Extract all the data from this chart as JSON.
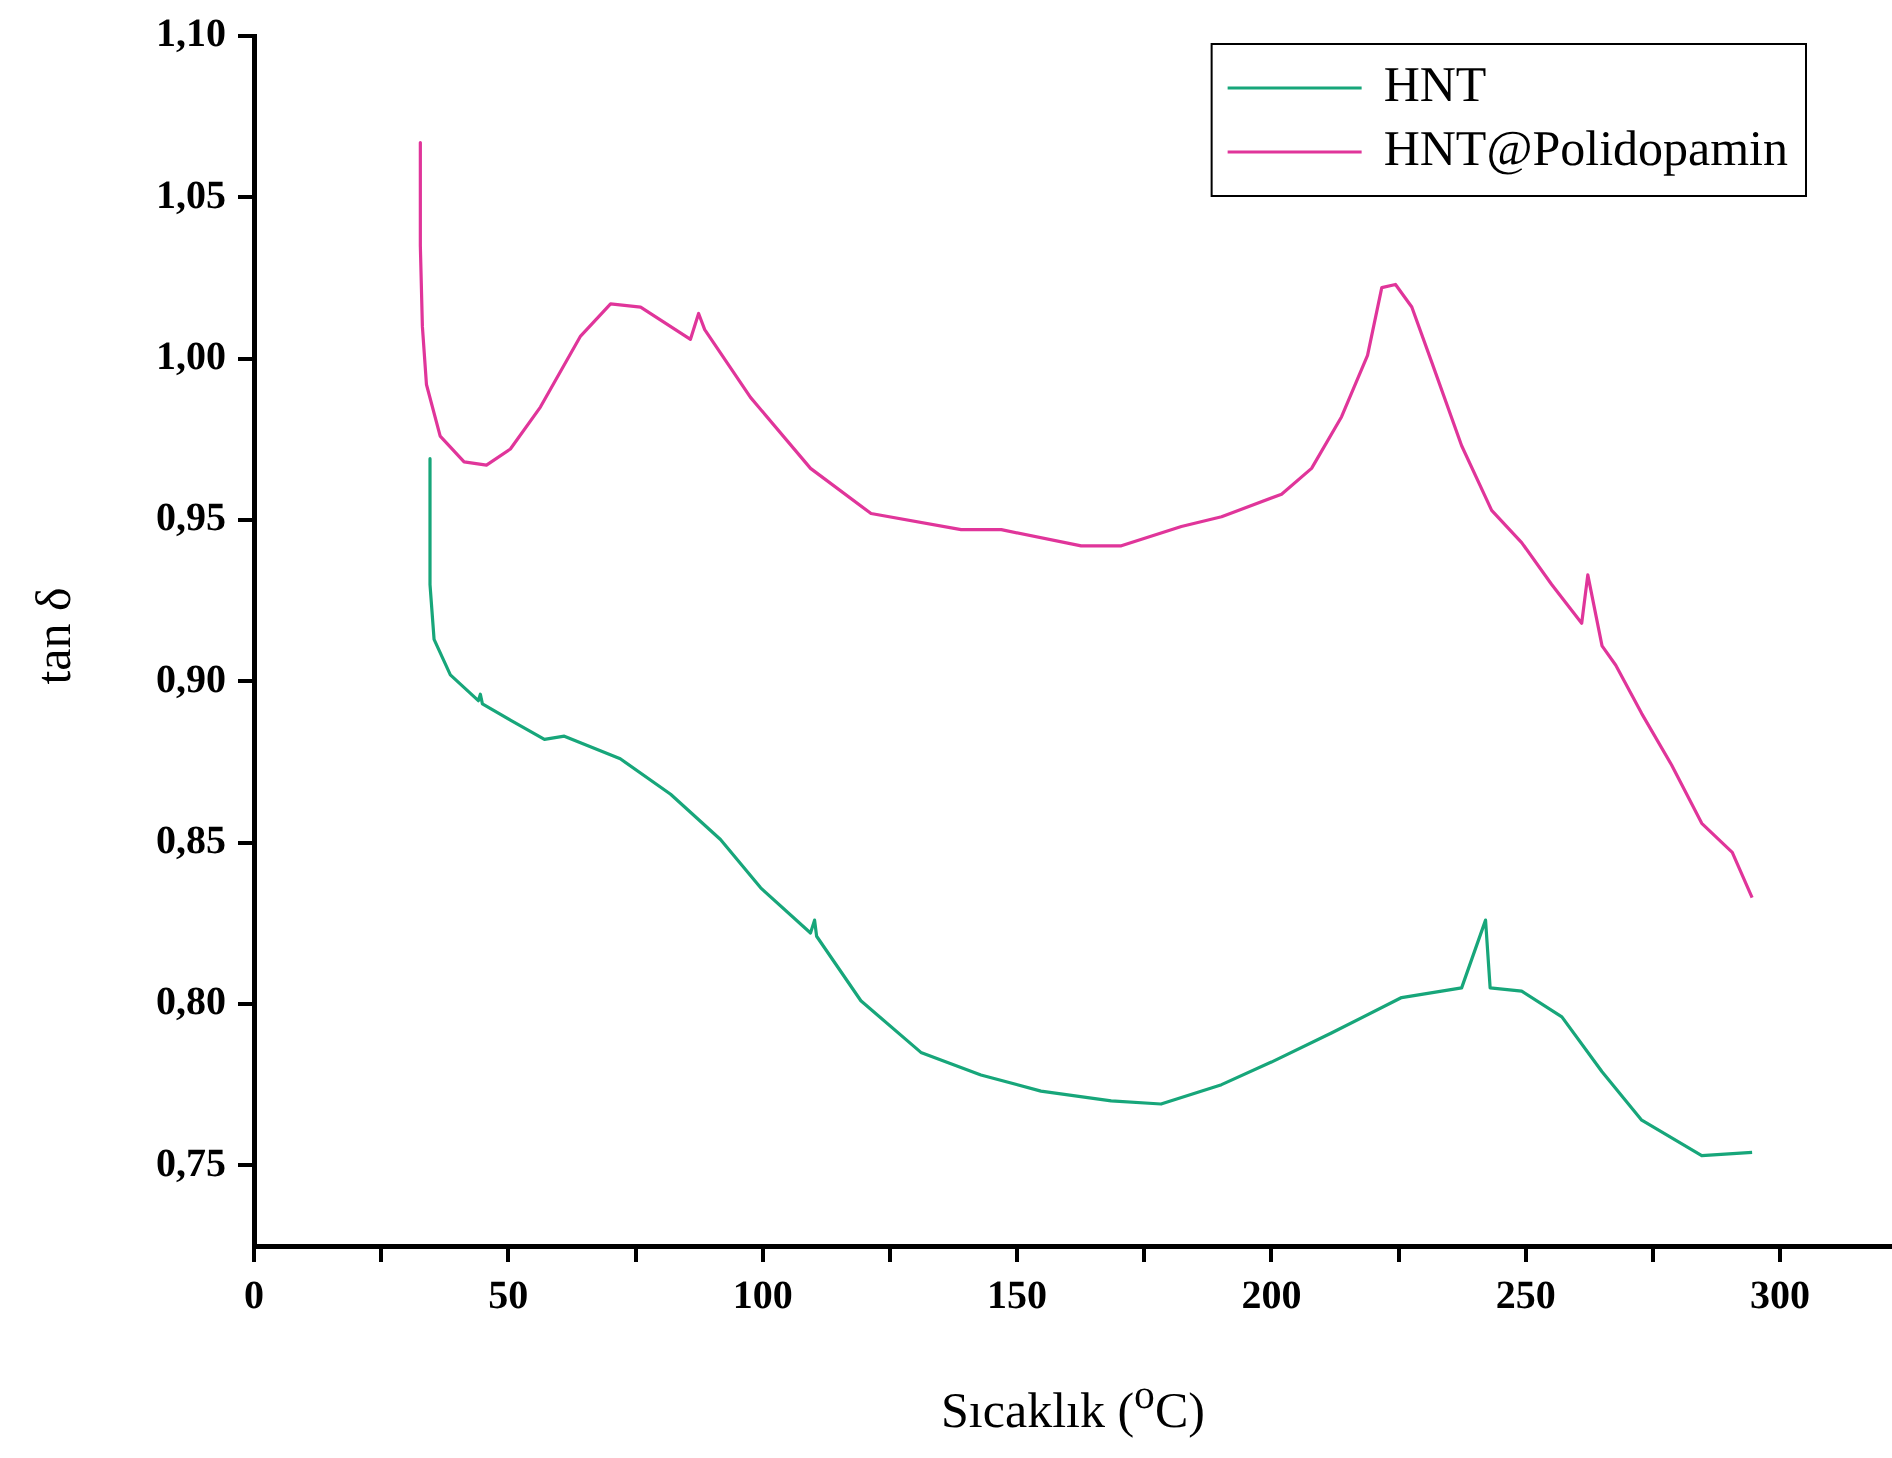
{
  "chart_data": {
    "type": "line",
    "xlabel": "Sıcaklık ($^{o}$C)",
    "ylabel": "tan δ",
    "xlim": [
      0,
      322
    ],
    "ylim": [
      0.725,
      1.1
    ],
    "xticks": [
      0,
      {
        "value": 25,
        "label": null
      },
      50,
      {
        "value": 75,
        "label": null
      },
      100,
      {
        "value": 125,
        "label": null
      },
      150,
      {
        "value": 175,
        "label": null
      },
      200,
      {
        "value": 225,
        "label": null
      },
      250,
      {
        "value": 275,
        "label": null
      },
      300
    ],
    "yticks": [
      {
        "value": 0.75,
        "label": "0,75"
      },
      {
        "value": 0.8,
        "label": "0,80"
      },
      {
        "value": 0.85,
        "label": "0,85"
      },
      {
        "value": 0.9,
        "label": "0,90"
      },
      {
        "value": 0.95,
        "label": "0,95"
      },
      {
        "value": 1.0,
        "label": "1,00"
      },
      {
        "value": 1.05,
        "label": "1,05"
      },
      {
        "value": 1.1,
        "label": "1,10"
      }
    ],
    "grid": false,
    "legend": "top right",
    "marker": "none",
    "line_style": "solid",
    "series": [
      {
        "name": "HNT",
        "color": "#17a67a",
        "x": [
          34.6,
          34.6,
          35.4,
          38.6,
          44.1,
          44.5,
          44.9,
          50.4,
          57.1,
          61,
          72,
          81.9,
          91.7,
          99.6,
          109.4,
          110.2,
          110.6,
          119.3,
          131.1,
          142.9,
          154.7,
          168.5,
          178.3,
          190.2,
          200,
          211.8,
          225.6,
          237.4,
          242.1,
          243,
          249.2,
          257.1,
          265,
          272.8,
          284.6,
          294.5
        ],
        "values": [
          0.969,
          0.93,
          0.913,
          0.902,
          0.894,
          0.896,
          0.893,
          0.888,
          0.882,
          0.883,
          0.876,
          0.865,
          0.851,
          0.836,
          0.822,
          0.826,
          0.821,
          0.801,
          0.785,
          0.778,
          0.773,
          0.77,
          0.769,
          0.775,
          0.782,
          0.791,
          0.802,
          0.805,
          0.826,
          0.805,
          0.804,
          0.796,
          0.779,
          0.764,
          0.753,
          0.754
        ]
      },
      {
        "name": "HNT@Polidopamin",
        "color": "#e0359a",
        "x": [
          32.7,
          32.7,
          33.1,
          33.9,
          36.6,
          41.3,
          45.7,
          50.4,
          56.3,
          64.2,
          70.1,
          76,
          85.8,
          87.4,
          88.6,
          97.6,
          109.4,
          121.3,
          139,
          146.9,
          162.6,
          170.5,
          182.3,
          190.2,
          202,
          207.9,
          213.8,
          218.9,
          221.7,
          224.4,
          227.6,
          231.5,
          237.4,
          243.3,
          249.2,
          255.1,
          261,
          262.2,
          265,
          267.7,
          272.8,
          278.7,
          284.6,
          290.6,
          294.5
        ],
        "values": [
          1.067,
          1.035,
          1.01,
          0.992,
          0.976,
          0.968,
          0.967,
          0.972,
          0.985,
          1.007,
          1.017,
          1.016,
          1.006,
          1.014,
          1.009,
          0.988,
          0.966,
          0.952,
          0.947,
          0.947,
          0.942,
          0.942,
          0.948,
          0.951,
          0.958,
          0.966,
          0.982,
          1.001,
          1.022,
          1.023,
          1.016,
          0.999,
          0.973,
          0.953,
          0.943,
          0.93,
          0.918,
          0.933,
          0.911,
          0.905,
          0.89,
          0.874,
          0.856,
          0.847,
          0.833
        ]
      }
    ]
  }
}
